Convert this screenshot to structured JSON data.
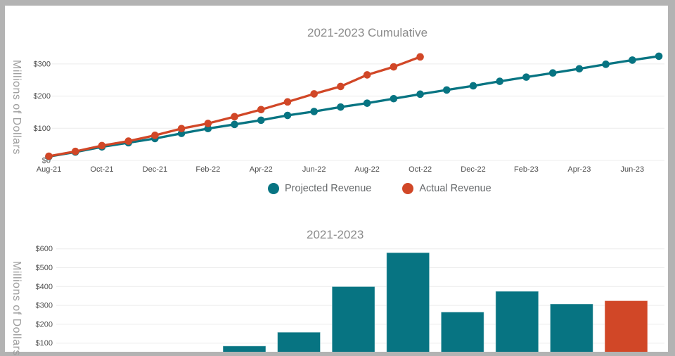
{
  "window": {
    "frame_color": "#b3b3b3",
    "canvas_color": "#ffffff"
  },
  "theme": {
    "grid_color": "#ececec",
    "tick_label_color": "#4d4d4d",
    "title_color": "#8b8b8b",
    "axis_title_color": "#9e9e9e",
    "legend_text_color": "#66696b",
    "teal": "#077482",
    "orange": "#d14727",
    "bar_stroke": "rgba(255,255,255,0.5)"
  },
  "chart_data": [
    {
      "type": "line",
      "title": "2021-2023 Cumulative",
      "ylabel": "Millions of Dollars",
      "x": [
        "Aug-21",
        "Sep-21",
        "Oct-21",
        "Nov-21",
        "Dec-21",
        "Jan-22",
        "Feb-22",
        "Mar-22",
        "Apr-22",
        "May-22",
        "Jun-22",
        "Jul-22",
        "Aug-22",
        "Sep-22",
        "Oct-22",
        "Nov-22",
        "Dec-22",
        "Jan-23",
        "Feb-23",
        "Mar-23",
        "Apr-23",
        "May-23",
        "Jun-23",
        "Jul-23"
      ],
      "x_tick_labels": [
        "Aug-21",
        "Oct-21",
        "Dec-21",
        "Feb-22",
        "Apr-22",
        "Jun-22",
        "Aug-22",
        "Oct-22",
        "Dec-22",
        "Feb-23",
        "Apr-23",
        "Jun-23"
      ],
      "y_ticks": [
        0,
        100,
        200,
        300
      ],
      "y_tick_labels": [
        "$0",
        "$100",
        "$200",
        "$300"
      ],
      "ylim": [
        0,
        335
      ],
      "grid": "horizontal",
      "legend_position": "bottom",
      "series": [
        {
          "name": "Projected Revenue",
          "color": "#077482",
          "values": [
            12,
            26,
            42,
            55,
            68,
            84,
            99,
            112,
            125,
            140,
            152,
            166,
            178,
            192,
            206,
            219,
            232,
            246,
            259,
            272,
            285,
            299,
            312,
            324
          ]
        },
        {
          "name": "Actual Revenue",
          "color": "#d14727",
          "values": [
            13,
            28,
            46,
            60,
            78,
            99,
            115,
            136,
            158,
            182,
            207,
            230,
            266,
            291,
            322
          ]
        }
      ]
    },
    {
      "type": "bar",
      "title": "2021-2023",
      "ylabel": "Millions of Dollars",
      "y_ticks": [
        100,
        200,
        300,
        400,
        500,
        600
      ],
      "y_tick_labels": [
        "$100",
        "$200",
        "$300",
        "$400",
        "$500",
        "$600"
      ],
      "ylim": [
        0,
        620
      ],
      "grid": "horizontal",
      "x_axis_labels_visible": false,
      "categories": [
        "",
        "",
        "",
        "",
        "",
        "",
        "",
        "",
        "",
        "",
        ""
      ],
      "values": [
        null,
        null,
        null,
        85,
        158,
        400,
        580,
        265,
        375,
        308,
        325
      ],
      "bar_colors": [
        "#077482",
        "#077482",
        "#077482",
        "#077482",
        "#077482",
        "#077482",
        "#077482",
        "#077482",
        "#077482",
        "#077482",
        "#d14727"
      ]
    }
  ]
}
